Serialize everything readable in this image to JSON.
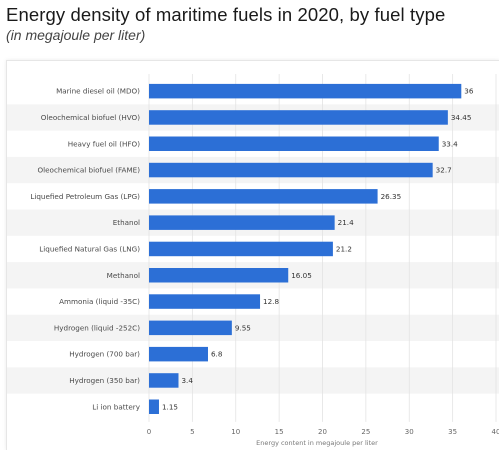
{
  "header": {
    "title": "Energy density of maritime fuels in 2020, by fuel type",
    "subtitle": "(in megajoule per liter)"
  },
  "colors": {
    "bar": "#2c6fd6",
    "band": "#f4f4f4",
    "grid": "#e3e3e3"
  },
  "chart_data": {
    "type": "bar",
    "orientation": "horizontal",
    "title": "Energy density of maritime fuels in 2020, by fuel type",
    "subtitle": "(in megajoule per liter)",
    "categories": [
      "Marine diesel oil (MDO)",
      "Oleochemical biofuel (HVO)",
      "Heavy fuel oil (HFO)",
      "Oleochemical biofuel (FAME)",
      "Liquefied Petroleum Gas (LPG)",
      "Ethanol",
      "Liquefied Natural Gas (LNG)",
      "Methanol",
      "Ammonia (liquid -35C)",
      "Hydrogen (liquid -252C)",
      "Hydrogen (700 bar)",
      "Hydrogen (350 bar)",
      "Li ion battery"
    ],
    "values": [
      36,
      34.45,
      33.4,
      32.7,
      26.35,
      21.4,
      21.2,
      16.05,
      12.8,
      9.55,
      6.8,
      3.4,
      1.15
    ],
    "value_labels": [
      "36",
      "34.45",
      "33.4",
      "32.7",
      "26.35",
      "21.4",
      "21.2",
      "16.05",
      "12.8",
      "9.55",
      "6.8",
      "3.4",
      "1.15"
    ],
    "xlim": [
      0,
      40
    ],
    "xticks": [
      0,
      5,
      10,
      15,
      20,
      25,
      30,
      35,
      40
    ],
    "xlabel": "Energy content in megajoule per liter",
    "ylabel": "",
    "grid": true
  }
}
